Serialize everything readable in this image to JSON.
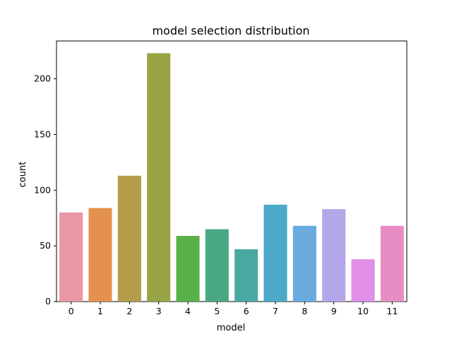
{
  "chart_data": {
    "type": "bar",
    "title": "model selection distribution",
    "xlabel": "model",
    "ylabel": "count",
    "categories": [
      "0",
      "1",
      "2",
      "3",
      "4",
      "5",
      "6",
      "7",
      "8",
      "9",
      "10",
      "11"
    ],
    "values": [
      80,
      84,
      113,
      223,
      59,
      65,
      47,
      87,
      68,
      83,
      38,
      68
    ],
    "ylim": [
      0,
      234
    ],
    "yticks": [
      0,
      50,
      100,
      150,
      200
    ],
    "grid": false,
    "colors": [
      "#ea96a3",
      "#e5914e",
      "#b59c4b",
      "#98a344",
      "#58b146",
      "#49a882",
      "#4aa8a2",
      "#4ca9ca",
      "#69abdf",
      "#b3a7ea",
      "#e08ee7",
      "#e88dc4"
    ]
  }
}
